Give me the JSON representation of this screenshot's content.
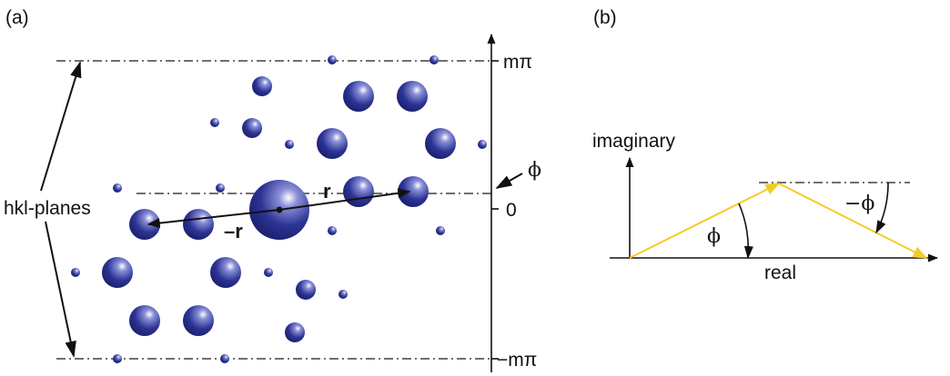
{
  "panel_a": {
    "label": "(a)",
    "side_label": "hkl-planes",
    "axis_top": "mπ",
    "axis_zero": "0",
    "axis_bottom": "−mπ",
    "phase_label": "ϕ",
    "vector_r": "r",
    "vector_neg_r": "–r"
  },
  "panel_b": {
    "label": "(b)",
    "y_axis_label": "imaginary",
    "x_axis_label": "real",
    "angle_phi": "ϕ",
    "angle_neg_phi": "−ϕ"
  },
  "colors": {
    "atom": "#2a2f8f",
    "vector_yellow": "#f3cc2c"
  }
}
